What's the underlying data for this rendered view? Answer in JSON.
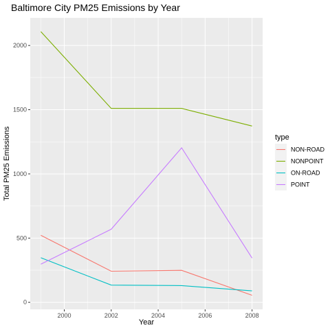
{
  "chart_data": {
    "type": "line",
    "title": "Baltimore City PM25 Emissions by Year",
    "xlabel": "Year",
    "ylabel": "Total PM25 Emissions",
    "x": [
      1999,
      2002,
      2005,
      2008
    ],
    "xlim": [
      1998.55,
      2008.45
    ],
    "ylim": [
      -55,
      2215
    ],
    "x_ticks": [
      2000,
      2002,
      2004,
      2006,
      2008
    ],
    "x_tick_labels": [
      "2000",
      "2002",
      "2004",
      "2006",
      "2008"
    ],
    "y_ticks": [
      0,
      500,
      1000,
      1500,
      2000
    ],
    "y_tick_labels": [
      "0",
      "500",
      "1000",
      "1500",
      "2000"
    ],
    "grid": true,
    "legend_title": "type",
    "legend_position": "right",
    "series": [
      {
        "name": "NON-ROAD",
        "color": "#F8766D",
        "values": [
          522,
          242,
          249,
          55
        ]
      },
      {
        "name": "NONPOINT",
        "color": "#7CAE00",
        "values": [
          2108,
          1510,
          1510,
          1373
        ]
      },
      {
        "name": "ON-ROAD",
        "color": "#00BFC4",
        "values": [
          347,
          134,
          130,
          89
        ]
      },
      {
        "name": "POINT",
        "color": "#C77CFF",
        "values": [
          297,
          569,
          1203,
          345
        ]
      }
    ]
  }
}
